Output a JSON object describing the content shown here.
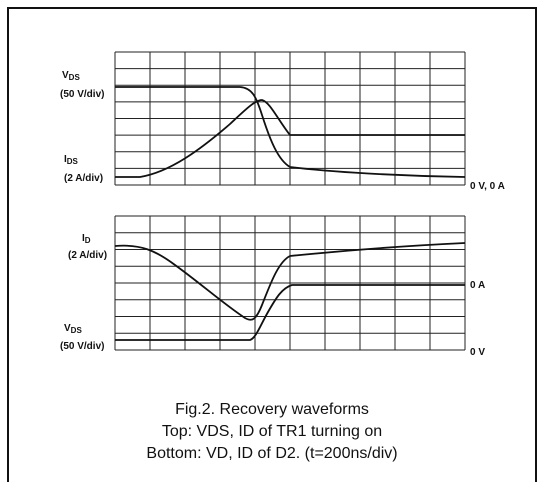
{
  "top_plot": {
    "vds_label": {
      "main": "V",
      "sub": "DS"
    },
    "vds_scale": "(50 V/div)",
    "ids_label": {
      "main": "I",
      "sub": "DS"
    },
    "ids_scale": "(2 A/div)",
    "zero_label": "0 V, 0 A"
  },
  "bottom_plot": {
    "id_label": {
      "main": "I",
      "sub": "D"
    },
    "id_scale": "(2 A/div)",
    "zero_a_label": "0 A",
    "vds_label": {
      "main": "V",
      "sub": "DS"
    },
    "vds_scale": "(50 V/div)",
    "zero_v_label": "0 V"
  },
  "caption": [
    "Fig.2. Recovery waveforms",
    "Top: VDS, ID of TR1 turning on",
    "Bottom: VD, ID of D2. (t=200ns/div)"
  ]
}
